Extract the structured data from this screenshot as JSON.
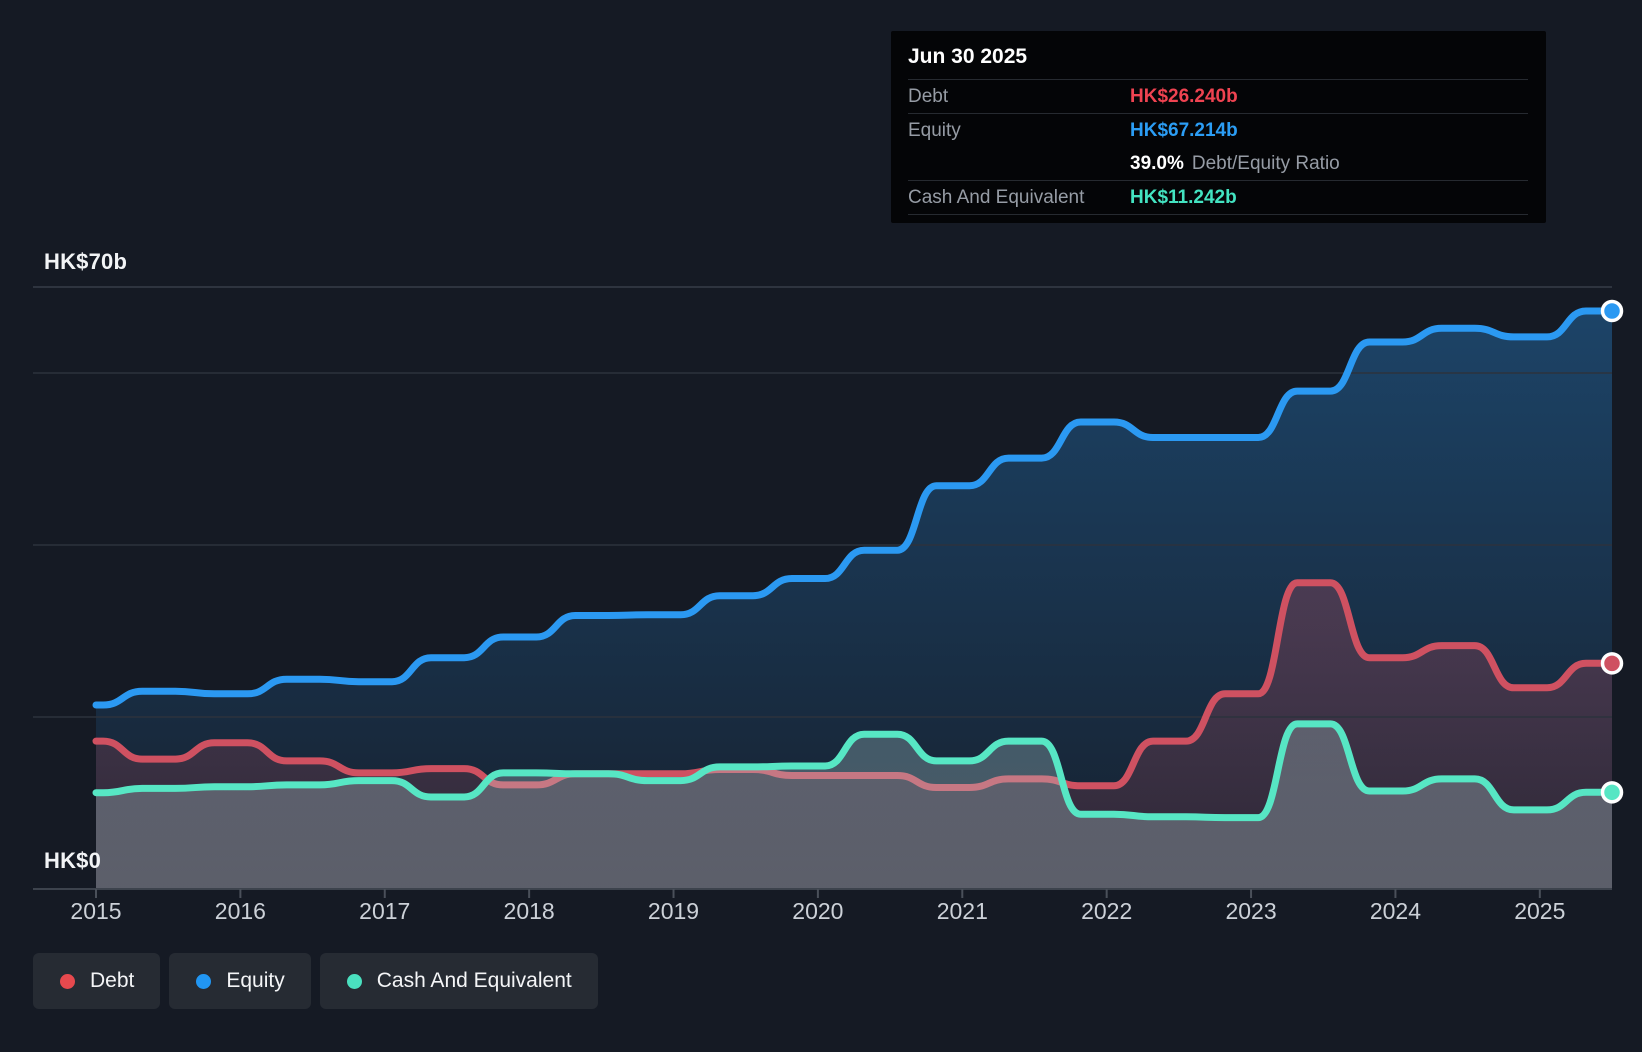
{
  "tooltip": {
    "date": "Jun 30 2025",
    "debt_label": "Debt",
    "debt_value": "HK$26.240b",
    "debt_color": "#ef4351",
    "equity_label": "Equity",
    "equity_value": "HK$67.214b",
    "equity_color": "#2b9df4",
    "ratio_value": "39.0%",
    "ratio_label": "Debt/Equity Ratio",
    "cash_label": "Cash And Equivalent",
    "cash_value": "HK$11.242b",
    "cash_color": "#43e3c1"
  },
  "axis": {
    "y_top_label": "HK$70b",
    "y_zero_label": "HK$0",
    "years": [
      "2015",
      "2016",
      "2017",
      "2018",
      "2019",
      "2020",
      "2021",
      "2022",
      "2023",
      "2024",
      "2025"
    ]
  },
  "legend": [
    {
      "label": "Debt",
      "color": "#e6494e"
    },
    {
      "label": "Equity",
      "color": "#2196f3"
    },
    {
      "label": "Cash And Equivalent",
      "color": "#4ae0bf"
    }
  ],
  "chart_data": {
    "type": "area",
    "title": "Debt, Equity and Cash history to Jun 30 2025",
    "x_range": [
      2015.0,
      2025.5
    ],
    "y_range_billions": [
      0,
      70
    ],
    "y_gridlines_billions": [
      20,
      40,
      60,
      70
    ],
    "note": "anchor points are [decimal-year reporting date, HK$ billions]; value holds (step) until next anchor",
    "series": [
      {
        "name": "Equity",
        "line_color": "#2b99f2",
        "points": [
          [
            2015.0,
            21.4
          ],
          [
            2015.5,
            23.0
          ],
          [
            2016.0,
            22.7
          ],
          [
            2016.5,
            24.4
          ],
          [
            2017.0,
            24.1
          ],
          [
            2017.5,
            26.9
          ],
          [
            2018.0,
            29.3
          ],
          [
            2018.5,
            31.8
          ],
          [
            2019.0,
            31.9
          ],
          [
            2019.5,
            34.1
          ],
          [
            2020.0,
            36.1
          ],
          [
            2020.5,
            39.4
          ],
          [
            2021.0,
            46.9
          ],
          [
            2021.5,
            50.1
          ],
          [
            2022.0,
            54.3
          ],
          [
            2022.5,
            52.5
          ],
          [
            2023.0,
            52.5
          ],
          [
            2023.5,
            57.9
          ],
          [
            2024.0,
            63.6
          ],
          [
            2024.5,
            65.2
          ],
          [
            2025.0,
            64.2
          ],
          [
            2025.5,
            67.214
          ]
        ]
      },
      {
        "name": "Debt",
        "line_color": "#cf5161",
        "points": [
          [
            2015.0,
            17.2
          ],
          [
            2015.5,
            15.1
          ],
          [
            2016.0,
            17.0
          ],
          [
            2016.5,
            14.9
          ],
          [
            2017.0,
            13.5
          ],
          [
            2017.5,
            14.0
          ],
          [
            2018.0,
            12.1
          ],
          [
            2018.5,
            13.4
          ],
          [
            2019.0,
            13.4
          ],
          [
            2019.5,
            13.9
          ],
          [
            2020.0,
            13.2
          ],
          [
            2020.5,
            13.2
          ],
          [
            2021.0,
            11.8
          ],
          [
            2021.5,
            12.8
          ],
          [
            2022.0,
            12.0
          ],
          [
            2022.5,
            17.2
          ],
          [
            2023.0,
            22.7
          ],
          [
            2023.5,
            35.6
          ],
          [
            2024.0,
            26.9
          ],
          [
            2024.5,
            28.3
          ],
          [
            2025.0,
            23.4
          ],
          [
            2025.5,
            26.24
          ]
        ]
      },
      {
        "name": "Cash And Equivalent",
        "line_color": "#57e6c4",
        "points": [
          [
            2015.0,
            11.2
          ],
          [
            2015.5,
            11.7
          ],
          [
            2016.0,
            11.9
          ],
          [
            2016.5,
            12.1
          ],
          [
            2017.0,
            12.6
          ],
          [
            2017.5,
            10.7
          ],
          [
            2018.0,
            13.5
          ],
          [
            2018.5,
            13.4
          ],
          [
            2019.0,
            12.6
          ],
          [
            2019.5,
            14.2
          ],
          [
            2020.0,
            14.3
          ],
          [
            2020.5,
            18.0
          ],
          [
            2021.0,
            14.9
          ],
          [
            2021.5,
            17.2
          ],
          [
            2022.0,
            8.7
          ],
          [
            2022.5,
            8.4
          ],
          [
            2023.0,
            8.3
          ],
          [
            2023.5,
            19.2
          ],
          [
            2024.0,
            11.4
          ],
          [
            2024.5,
            12.8
          ],
          [
            2025.0,
            9.2
          ],
          [
            2025.5,
            11.242
          ]
        ]
      }
    ],
    "end_markers": [
      {
        "series": "Equity",
        "value": 67.214
      },
      {
        "series": "Debt",
        "value": 26.24
      },
      {
        "series": "Cash And Equivalent",
        "value": 11.242
      }
    ],
    "legend_position": "bottom-left",
    "grid": true
  }
}
